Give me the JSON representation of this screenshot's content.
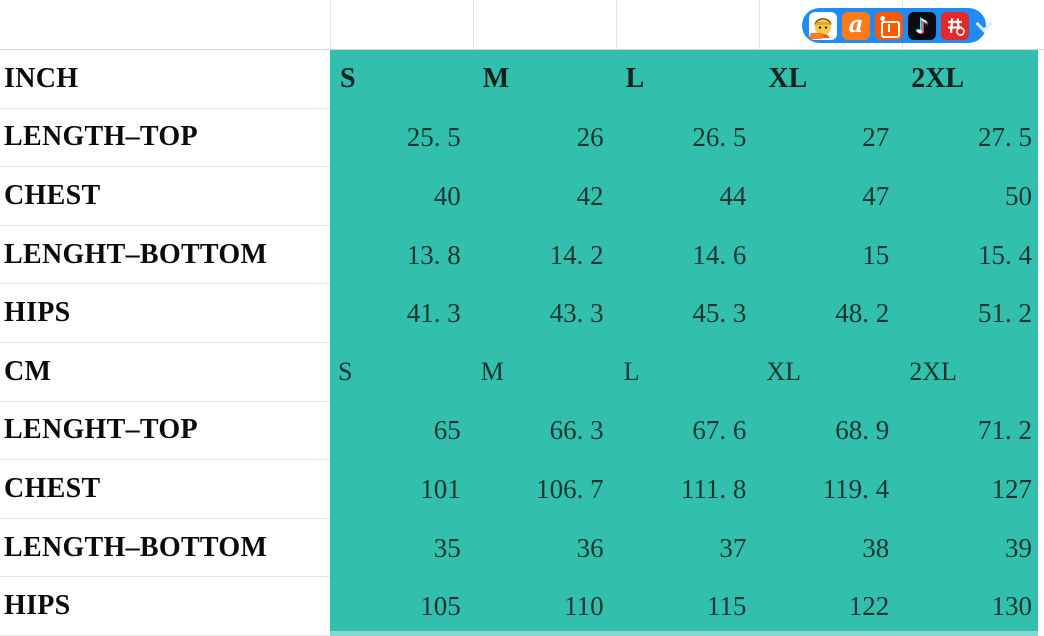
{
  "toolbar": {
    "background_color": "#1e8cf4",
    "icons": [
      {
        "name": "monkey-assistant-icon",
        "bg": "#ffffff"
      },
      {
        "name": "alibaba-1688-icon",
        "bg": "#ff7a1a",
        "glyph": "a"
      },
      {
        "name": "taobao-icon",
        "bg": "#ff5900",
        "glyph": "淘"
      },
      {
        "name": "douyin-icon",
        "bg": "#0b0b12",
        "glyph": "♪"
      },
      {
        "name": "pinduoduo-icon",
        "bg": "#e62828",
        "glyph": "拼"
      }
    ],
    "chevron": "collapse-chevron-down"
  },
  "size_chart": {
    "columns": [
      "S",
      "M",
      "L",
      "XL",
      "2XL"
    ],
    "rows": [
      {
        "label": "INCH",
        "type": "header",
        "cells": [
          "S",
          "M",
          "L",
          "XL",
          "2XL"
        ]
      },
      {
        "label": "LENGTH–TOP",
        "cells": [
          "25. 5",
          "26",
          "26. 5",
          "27",
          "27. 5"
        ]
      },
      {
        "label": "CHEST",
        "cells": [
          "40",
          "42",
          "44",
          "47",
          "50"
        ]
      },
      {
        "label": "LENGHT–BOTTOM",
        "cells": [
          "13. 8",
          "14. 2",
          "14. 6",
          "15",
          "15. 4"
        ]
      },
      {
        "label": "HIPS",
        "cells": [
          "41. 3",
          "43. 3",
          "45. 3",
          "48. 2",
          "51. 2"
        ]
      },
      {
        "label": "CM",
        "type": "subheader",
        "cells": [
          "S",
          "M",
          "L",
          "XL",
          "2XL"
        ]
      },
      {
        "label": "LENGHT–TOP",
        "cells": [
          "65",
          "66. 3",
          "67. 6",
          "68. 9",
          "71. 2"
        ]
      },
      {
        "label": "CHEST",
        "cells": [
          "101",
          "106. 7",
          "111. 8",
          "119. 4",
          "127"
        ]
      },
      {
        "label": "LENGTH–BOTTOM",
        "cells": [
          "35",
          "36",
          "37",
          "38",
          "39"
        ]
      },
      {
        "label": "HIPS",
        "cells": [
          "105",
          "110",
          "115",
          "122",
          "130"
        ]
      }
    ],
    "colors": {
      "table_fill": "#32bfad",
      "label_text": "#0b0b0b",
      "value_text": "#1c3531",
      "gridline": "#e3e3e3"
    }
  }
}
